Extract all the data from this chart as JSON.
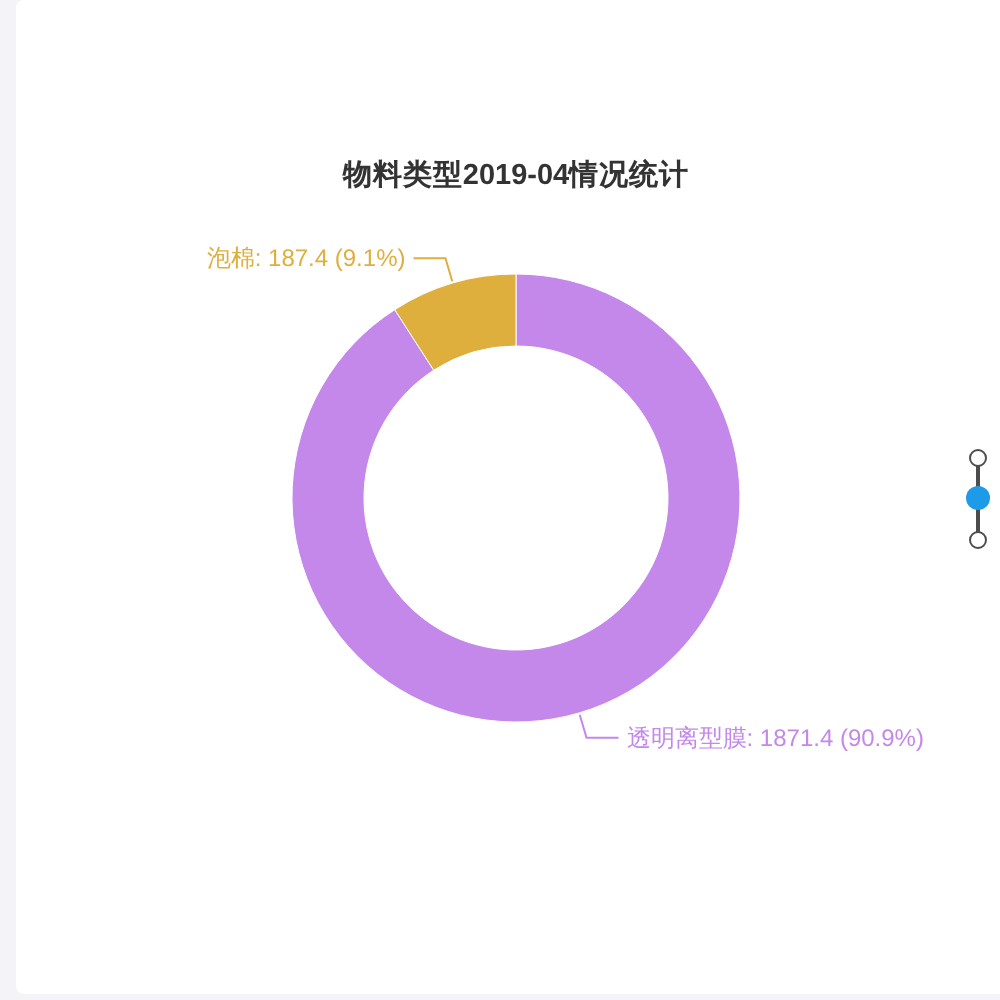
{
  "chart_data": {
    "type": "donut",
    "title": "物料类型2019-04情况统计",
    "categories": [
      "透明离型膜",
      "泡棉"
    ],
    "values": [
      1871.4,
      187.4
    ],
    "colors": [
      "#c488eb",
      "#dfaf3e"
    ],
    "value_labels": [
      "1871.4 (90.9%)",
      "187.4 (9.1%)"
    ]
  }
}
